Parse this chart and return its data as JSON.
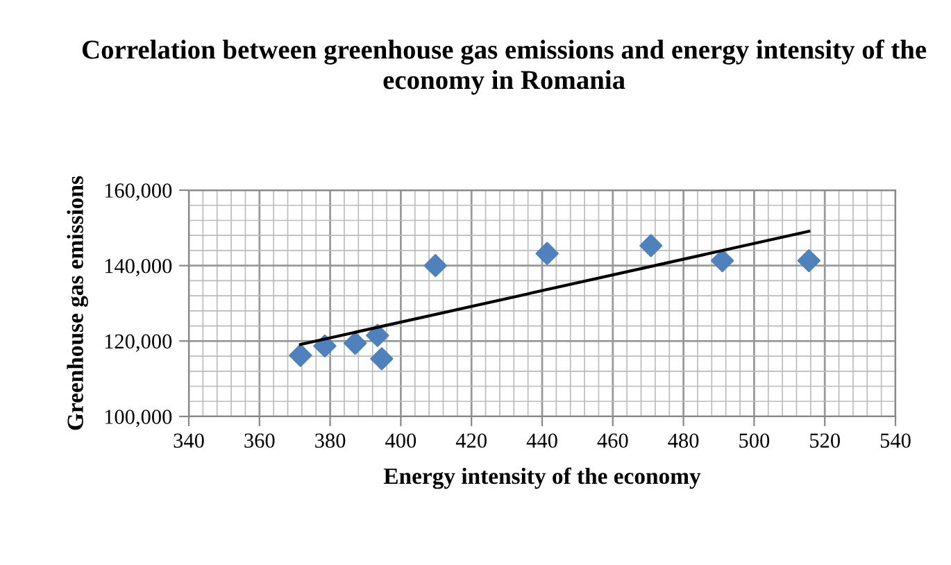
{
  "chart_data": {
    "type": "scatter",
    "title": "Correlation between greenhouse gas emissions and energy intensity of the economy in Romania",
    "xlabel": "Energy intensity of the economy",
    "ylabel": "Greenhouse gas emissions",
    "series": [
      {
        "color": "#4f81bd",
        "marker": "diamond",
        "x": [
          371.6,
          378.5,
          387.1,
          393.4,
          394.6,
          409.8,
          441.4,
          470.8,
          491.0,
          515.5
        ],
        "values": [
          116200,
          118700,
          119400,
          121500,
          115300,
          140000,
          143200,
          145300,
          141300,
          141300
        ]
      },
      {
        "type": "line",
        "color": "#000000",
        "line_style": "solid",
        "x": [
          371.6,
          515.5
        ],
        "values": [
          119100,
          149100
        ]
      }
    ],
    "xlim": [
      340,
      540
    ],
    "xticks": [
      340,
      360,
      380,
      400,
      420,
      440,
      460,
      480,
      500,
      520,
      540
    ],
    "ylim": [
      100000,
      160000
    ],
    "yticks": [
      {
        "value": 100000,
        "label": "100,000"
      },
      {
        "value": 120000,
        "label": "120,000"
      },
      {
        "value": 140000,
        "label": "140,000"
      },
      {
        "value": 160000,
        "label": "160,000"
      }
    ],
    "grid": true
  }
}
